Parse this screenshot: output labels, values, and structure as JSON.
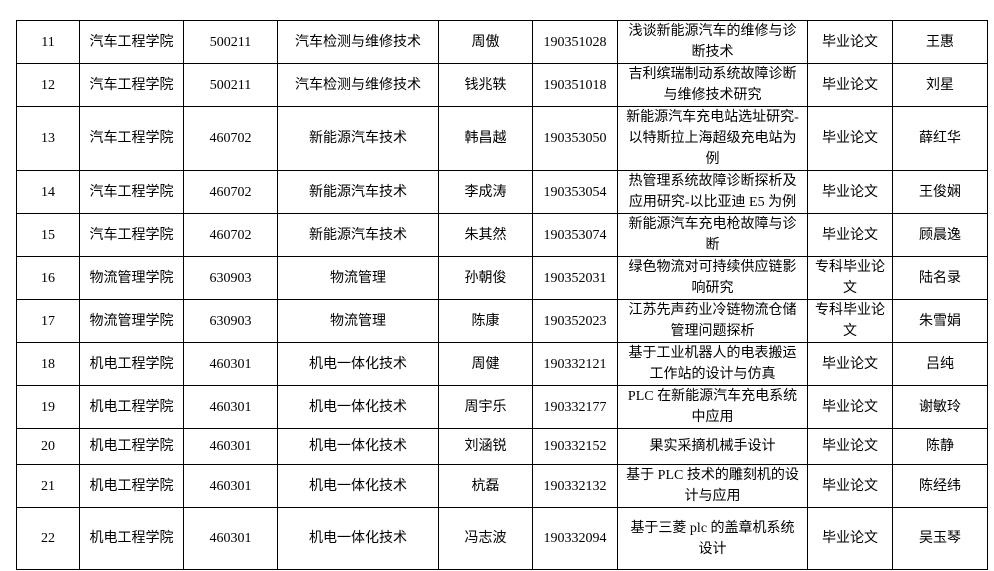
{
  "rows": [
    {
      "no": "11",
      "college": "汽车工程学院",
      "code": "500211",
      "major": "汽车检测与维修技术",
      "student": "周傲",
      "id": "190351028",
      "title": "浅谈新能源汽车的维修与诊断技术",
      "type": "毕业论文",
      "advisor": "王惠"
    },
    {
      "no": "12",
      "college": "汽车工程学院",
      "code": "500211",
      "major": "汽车检测与维修技术",
      "student": "钱兆轶",
      "id": "190351018",
      "title": "吉利缤瑞制动系统故障诊断与维修技术研究",
      "type": "毕业论文",
      "advisor": "刘星"
    },
    {
      "no": "13",
      "college": "汽车工程学院",
      "code": "460702",
      "major": "新能源汽车技术",
      "student": "韩昌越",
      "id": "190353050",
      "title": "新能源汽车充电站选址研究-以特斯拉上海超级充电站为例",
      "type": "毕业论文",
      "advisor": "薛红华"
    },
    {
      "no": "14",
      "college": "汽车工程学院",
      "code": "460702",
      "major": "新能源汽车技术",
      "student": "李成涛",
      "id": "190353054",
      "title": "热管理系统故障诊断探析及应用研究-以比亚迪 E5 为例",
      "type": "毕业论文",
      "advisor": "王俊娴"
    },
    {
      "no": "15",
      "college": "汽车工程学院",
      "code": "460702",
      "major": "新能源汽车技术",
      "student": "朱其然",
      "id": "190353074",
      "title": "新能源汽车充电枪故障与诊断",
      "type": "毕业论文",
      "advisor": "顾晨逸"
    },
    {
      "no": "16",
      "college": "物流管理学院",
      "code": "630903",
      "major": "物流管理",
      "student": "孙朝俊",
      "id": "190352031",
      "title": "绿色物流对可持续供应链影响研究",
      "type": "专科毕业论文",
      "advisor": "陆名录"
    },
    {
      "no": "17",
      "college": "物流管理学院",
      "code": "630903",
      "major": "物流管理",
      "student": "陈康",
      "id": "190352023",
      "title": "江苏先声药业冷链物流仓储管理问题探析",
      "type": "专科毕业论文",
      "advisor": "朱雪娟"
    },
    {
      "no": "18",
      "college": "机电工程学院",
      "code": "460301",
      "major": "机电一体化技术",
      "student": "周健",
      "id": "190332121",
      "title": "基于工业机器人的电表搬运工作站的设计与仿真",
      "type": "毕业论文",
      "advisor": "吕纯"
    },
    {
      "no": "19",
      "college": "机电工程学院",
      "code": "460301",
      "major": "机电一体化技术",
      "student": "周宇乐",
      "id": "190332177",
      "title": "PLC 在新能源汽车充电系统中应用",
      "type": "毕业论文",
      "advisor": "谢敏玲"
    },
    {
      "no": "20",
      "college": "机电工程学院",
      "code": "460301",
      "major": "机电一体化技术",
      "student": "刘涵锐",
      "id": "190332152",
      "title": "果实采摘机械手设计",
      "type": "毕业论文",
      "advisor": "陈静"
    },
    {
      "no": "21",
      "college": "机电工程学院",
      "code": "460301",
      "major": "机电一体化技术",
      "student": "杭磊",
      "id": "190332132",
      "title": "基于 PLC 技术的雕刻机的设计与应用",
      "type": "毕业论文",
      "advisor": "陈经纬"
    },
    {
      "no": "22",
      "college": "机电工程学院",
      "code": "460301",
      "major": "机电一体化技术",
      "student": "冯志波",
      "id": "190332094",
      "title": "基于三菱 plc 的盖章机系统设计",
      "type": "毕业论文",
      "advisor": "吴玉琴"
    }
  ]
}
